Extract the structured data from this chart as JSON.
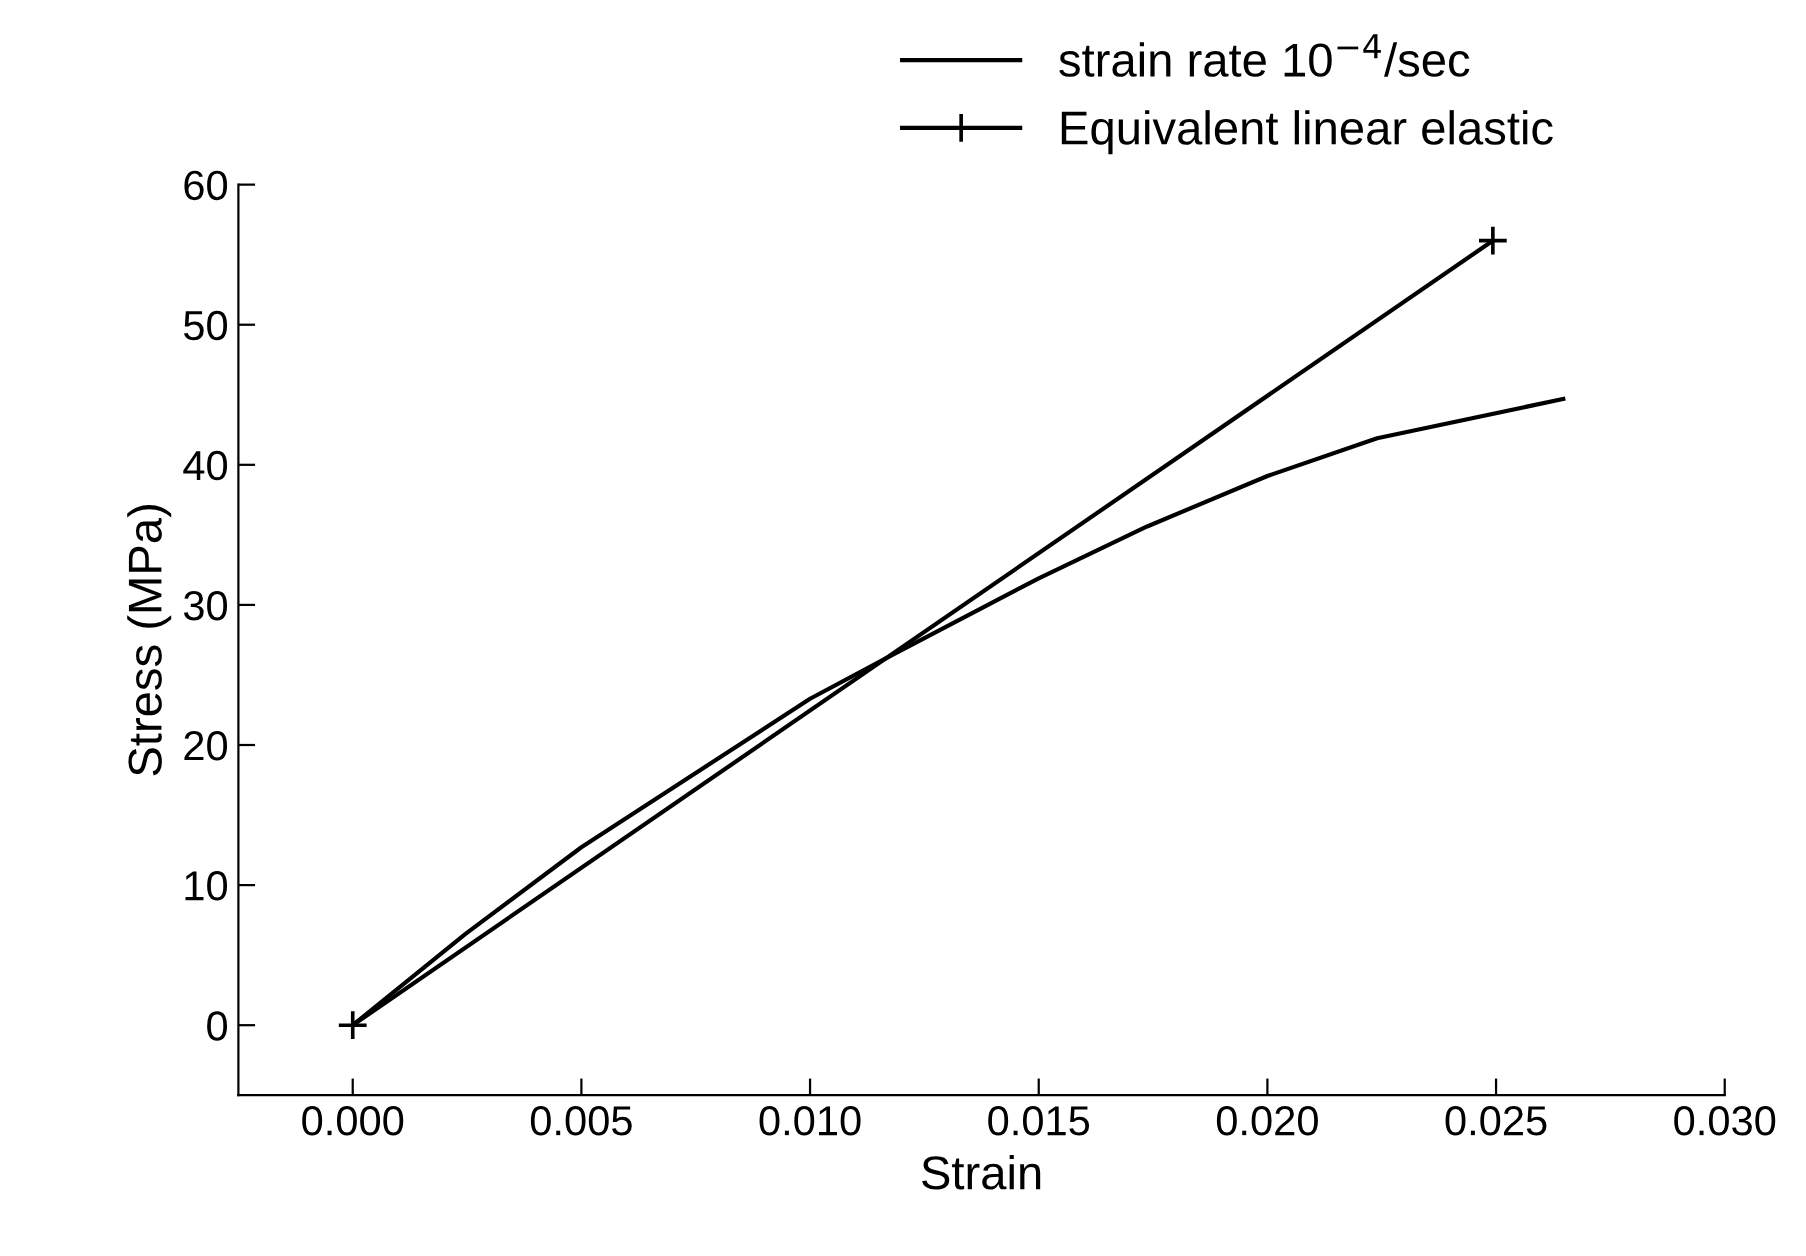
{
  "chart_data": {
    "type": "line",
    "xlabel": "Strain",
    "ylabel": "Stress (MPa)",
    "xlim": [
      -0.0025,
      0.03
    ],
    "xticks": [
      {
        "value": 0,
        "label": "0.000"
      },
      {
        "value": 0.005,
        "label": "0.005"
      },
      {
        "value": 0.01,
        "label": "0.010"
      },
      {
        "value": 0.015,
        "label": "0.015"
      },
      {
        "value": 0.02,
        "label": "0.020"
      },
      {
        "value": 0.025,
        "label": "0.025"
      },
      {
        "value": 0.03,
        "label": "0.030"
      }
    ],
    "ylim": [
      -5,
      60
    ],
    "yticks": [
      0,
      10,
      20,
      30,
      40,
      50,
      60
    ],
    "grid": false,
    "legend": "top",
    "series": [
      {
        "name": "strain rate 10$^{−4}$/sec",
        "color": "#000000",
        "marker": "none",
        "x": [
          0,
          0.00246,
          0.005,
          0.01,
          0.01178,
          0.015,
          0.01737,
          0.02,
          0.0224,
          0.02647
        ],
        "values": [
          0,
          6.5,
          12.7,
          23.3,
          26.4,
          31.9,
          35.6,
          39.2,
          41.9,
          44.7
        ]
      },
      {
        "name": "Equivalent linear elastic",
        "color": "#000000",
        "marker": "cross",
        "x": [
          0,
          0.02493
        ],
        "values": [
          0,
          56.0
        ]
      }
    ]
  }
}
